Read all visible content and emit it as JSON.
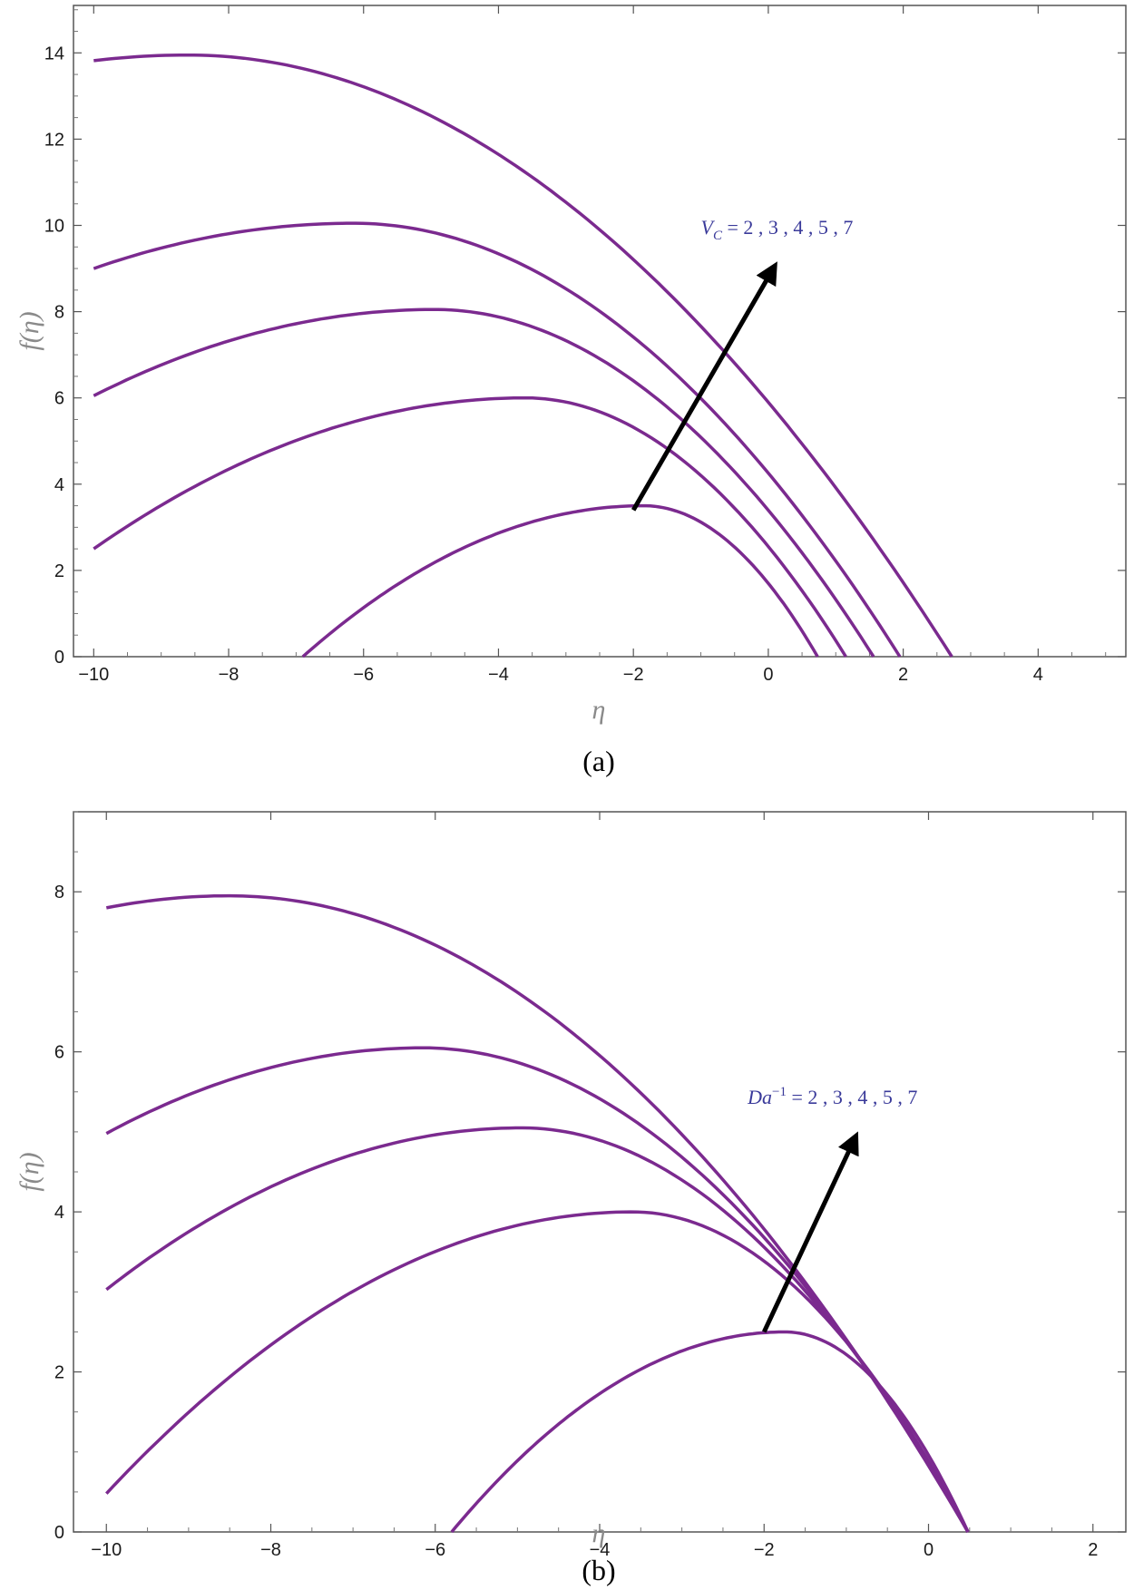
{
  "colors": {
    "curve": "#7b2a8f",
    "arrow": "#000000",
    "annotation": "#3a3a9a",
    "axis_label": "#8a8a8a"
  },
  "chart_data": [
    {
      "type": "line",
      "panel_label": "(a)",
      "xlabel": "η",
      "ylabel": "f(η)",
      "xlim": [
        -10.3,
        5.3
      ],
      "ylim": [
        0,
        15.1
      ],
      "xticks": [
        -10,
        -8,
        -6,
        -4,
        -2,
        0,
        2,
        4
      ],
      "yticks": [
        0,
        2,
        4,
        6,
        8,
        10,
        12,
        14
      ],
      "grid": false,
      "annotation": {
        "text": "V_C = 2 , 3 , 4 , 5 , 7",
        "parts": {
          "symbol": "V",
          "subscript": "C",
          "values": " = 2 , 3 , 4 , 5 , 7"
        },
        "arrow_from": [
          -2.0,
          3.4
        ],
        "arrow_to": [
          0.0,
          8.8
        ],
        "label_at": [
          -1.0,
          9.8
        ]
      },
      "series": [
        {
          "vertex": [
            -1.85,
            3.5
          ],
          "start": [
            -6.9,
            0
          ],
          "end_x": 0.73
        },
        {
          "vertex": [
            -3.6,
            6.0
          ],
          "start": [
            -10,
            2.5
          ],
          "end_x": 1.15
        },
        {
          "vertex": [
            -4.95,
            8.05
          ],
          "start": [
            -10,
            6.05
          ],
          "end_x": 1.56
        },
        {
          "vertex": [
            -6.15,
            10.05
          ],
          "start": [
            -10,
            9.0
          ],
          "end_x": 1.95
        },
        {
          "vertex": [
            -8.6,
            13.95
          ],
          "start": [
            -10,
            13.82
          ],
          "end_x": 2.72
        }
      ]
    },
    {
      "type": "line",
      "panel_label": "(b)",
      "xlabel": "η",
      "ylabel": "f(η)",
      "xlim": [
        -10.4,
        2.4
      ],
      "ylim": [
        0,
        9.0
      ],
      "xticks": [
        -10,
        -8,
        -6,
        -4,
        -2,
        0,
        2
      ],
      "yticks": [
        0,
        2,
        4,
        6,
        8
      ],
      "grid": false,
      "annotation": {
        "text": "Da^-1 = 2 , 3 , 4 , 5 , 7",
        "parts": {
          "symbol": "Da",
          "superscript": "−1",
          "values": " = 2 , 3 , 4 , 5 , 7"
        },
        "arrow_from": [
          -2.0,
          2.5
        ],
        "arrow_to": [
          -0.95,
          4.8
        ],
        "label_at": [
          -2.2,
          5.35
        ]
      },
      "series": [
        {
          "vertex": [
            -1.75,
            2.5
          ],
          "start": [
            -5.8,
            0
          ],
          "end_x": 0.48
        },
        {
          "vertex": [
            -3.6,
            4.0
          ],
          "start": [
            -10,
            0.48
          ],
          "end_x": 0.48
        },
        {
          "vertex": [
            -4.95,
            5.05
          ],
          "start": [
            -10,
            3.03
          ],
          "end_x": 0.48
        },
        {
          "vertex": [
            -6.15,
            6.05
          ],
          "start": [
            -10,
            4.98
          ],
          "end_x": 0.48
        },
        {
          "vertex": [
            -8.5,
            7.95
          ],
          "start": [
            -10,
            7.8
          ],
          "end_x": 0.48
        }
      ]
    }
  ]
}
